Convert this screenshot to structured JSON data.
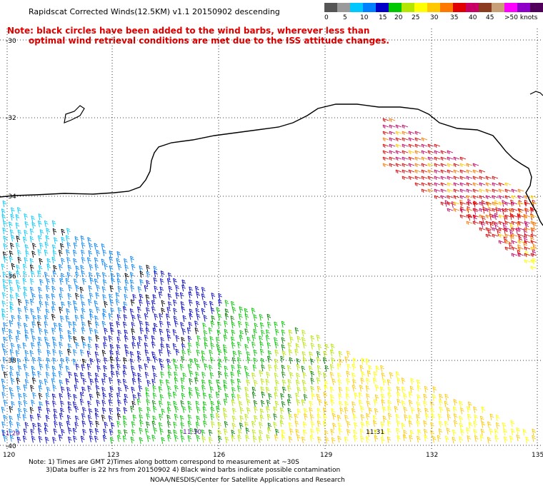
{
  "header": {
    "title": "Rapidscat Corrected Winds(12.5KM) v1.1 20150902 descending",
    "note_line1": "Note: black circles have been added to the wind barbs, wherever less than",
    "note_line2": "optimal wind retrieval conditions are met due to the ISS attitude changes."
  },
  "legend": {
    "labels": [
      "0",
      "5",
      "10",
      "15",
      "20",
      "25",
      "30",
      "35",
      "40",
      "45",
      ">50 knots"
    ],
    "colors": [
      "#555555",
      "#9a9a9a",
      "#00c8ff",
      "#0080ff",
      "#0000c8",
      "#00c800",
      "#b4e600",
      "#ffff00",
      "#ffc800",
      "#ff7800",
      "#e00000",
      "#c80064",
      "#8c3c1e",
      "#c8a078",
      "#ff00ff",
      "#8c00c8",
      "#50005a"
    ]
  },
  "map": {
    "lat_labels": [
      "-30",
      "-32",
      "-34",
      "-36",
      "-38",
      "-40"
    ],
    "lon_labels": [
      "120",
      "123",
      "126",
      "129",
      "132",
      "135"
    ],
    "time_labels": [
      "11:29",
      "11:30",
      "11:31"
    ]
  },
  "footer": {
    "line1": "Note: 1) Times are GMT 2)Times along bottom correspond to measurement at ~30S",
    "line2": "3)Data buffer is 22 hrs from 20150902 4) Black wind barbs indicate possible contamination",
    "line3": "NOAA/NESDIS/Center for Satellite Applications and Research"
  }
}
